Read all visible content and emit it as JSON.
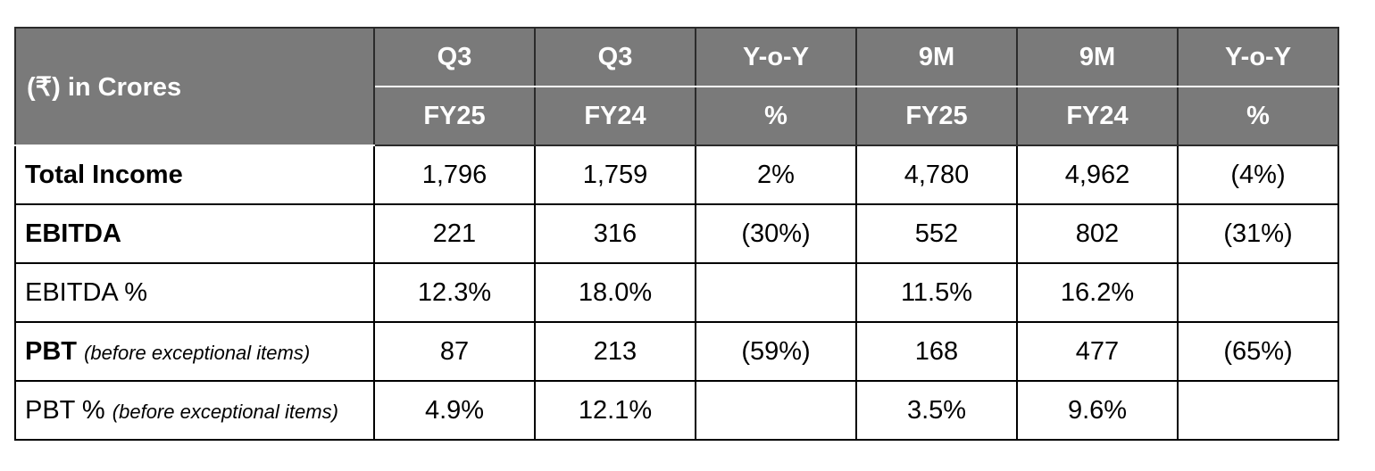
{
  "table": {
    "corner_label": "(₹) in Crores",
    "header_top": [
      "Q3",
      "Q3",
      "Y-o-Y",
      "9M",
      "9M",
      "Y-o-Y"
    ],
    "header_bottom": [
      "FY25",
      "FY24",
      "%",
      "FY25",
      "FY24",
      "%"
    ],
    "rows": [
      {
        "label": "Total Income",
        "note": "",
        "cells": [
          "1,796",
          "1,759",
          "2%",
          "4,780",
          "4,962",
          "(4%)"
        ]
      },
      {
        "label": "EBITDA",
        "note": "",
        "cells": [
          "221",
          "316",
          "(30%)",
          "552",
          "802",
          "(31%)"
        ]
      },
      {
        "label": "EBITDA %",
        "note": "",
        "cells": [
          "12.3%",
          "18.0%",
          "",
          "11.5%",
          "16.2%",
          ""
        ]
      },
      {
        "label": "PBT",
        "note": "(before exceptional items)",
        "cells": [
          "87",
          "213",
          "(59%)",
          "168",
          "477",
          "(65%)"
        ]
      },
      {
        "label": "PBT %",
        "note": "(before exceptional items)",
        "cells": [
          "4.9%",
          "12.1%",
          "",
          "3.5%",
          "9.6%",
          ""
        ]
      }
    ]
  },
  "colors": {
    "header_bg": "#7a7a7a",
    "header_text": "#ffffff",
    "border": "#000000"
  }
}
